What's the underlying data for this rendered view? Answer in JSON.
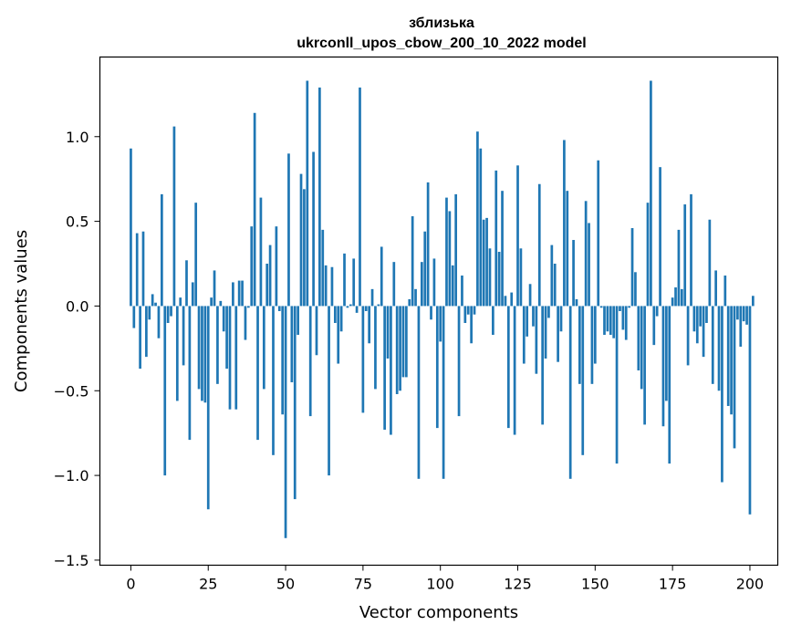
{
  "chart_data": {
    "type": "bar",
    "title": "зблизька",
    "subtitle": "ukrconll_upos_cbow_200_10_2022 model",
    "xlabel": "Vector components",
    "ylabel": "Components values",
    "xlim": [
      -10,
      209
    ],
    "ylim": [
      -1.53,
      1.47
    ],
    "xticks": [
      0,
      25,
      50,
      75,
      100,
      125,
      150,
      175,
      200
    ],
    "yticks": [
      -1.5,
      -1.0,
      -0.5,
      0.0,
      0.5,
      1.0
    ],
    "ytick_labels": [
      "−1.5",
      "−1.0",
      "−0.5",
      "0.0",
      "0.5",
      "1.0"
    ],
    "bar_color": "#1f77b4",
    "grid": false,
    "legend": "none",
    "series": [
      {
        "values": [
          0.93,
          -0.13,
          0.43,
          -0.37,
          0.44,
          -0.3,
          -0.08,
          0.07,
          0.02,
          -0.19,
          0.66,
          -1.0,
          -0.1,
          -0.06,
          1.06,
          -0.56,
          0.05,
          -0.35,
          0.27,
          -0.79,
          0.14,
          0.61,
          -0.49,
          -0.56,
          -0.57,
          -1.2,
          0.05,
          0.21,
          -0.46,
          0.03,
          -0.15,
          -0.37,
          -0.61,
          0.14,
          -0.61,
          0.15,
          0.15,
          -0.2,
          -0.01,
          0.47,
          1.14,
          -0.79,
          0.64,
          -0.49,
          0.25,
          0.36,
          -0.88,
          0.47,
          -0.03,
          -0.64,
          -1.37,
          0.9,
          -0.45,
          -1.14,
          -0.17,
          0.78,
          0.69,
          1.33,
          -0.65,
          0.91,
          -0.29,
          1.29,
          0.45,
          0.24,
          -1.0,
          0.23,
          -0.1,
          -0.34,
          -0.15,
          0.31,
          -0.01,
          0.01,
          0.28,
          -0.04,
          1.29,
          -0.63,
          -0.03,
          -0.22,
          0.1,
          -0.49,
          0.01,
          0.35,
          -0.73,
          -0.31,
          -0.76,
          0.26,
          -0.52,
          -0.5,
          -0.42,
          -0.42,
          0.04,
          0.53,
          0.1,
          -1.02,
          0.26,
          0.44,
          0.73,
          -0.08,
          0.28,
          -0.72,
          -0.21,
          -1.02,
          0.64,
          0.56,
          0.24,
          0.66,
          -0.65,
          0.18,
          -0.1,
          -0.05,
          -0.22,
          -0.05,
          1.03,
          0.93,
          0.51,
          0.52,
          0.34,
          -0.17,
          0.8,
          0.32,
          0.68,
          0.06,
          -0.72,
          0.08,
          -0.76,
          0.83,
          0.34,
          -0.34,
          -0.18,
          0.13,
          -0.12,
          -0.4,
          0.72,
          -0.7,
          -0.31,
          -0.07,
          0.36,
          0.25,
          -0.33,
          -0.15,
          0.98,
          0.68,
          -1.02,
          0.39,
          0.04,
          -0.46,
          -0.88,
          0.62,
          0.49,
          -0.46,
          -0.34,
          0.86,
          -0.01,
          -0.17,
          -0.15,
          -0.17,
          -0.19,
          -0.93,
          -0.03,
          -0.14,
          -0.2,
          -0.01,
          0.46,
          0.2,
          -0.38,
          -0.49,
          -0.7,
          0.61,
          1.33,
          -0.23,
          -0.06,
          0.82,
          -0.71,
          -0.56,
          -0.93,
          0.05,
          0.11,
          0.45,
          0.1,
          0.6,
          -0.35,
          0.66,
          -0.15,
          -0.22,
          -0.12,
          -0.3,
          -0.1,
          0.51,
          -0.46,
          0.21,
          -0.5,
          -1.04,
          0.18,
          -0.59,
          -0.64,
          -0.84,
          -0.08,
          -0.24,
          -0.09,
          -0.11,
          -1.23,
          0.06
        ]
      }
    ]
  }
}
